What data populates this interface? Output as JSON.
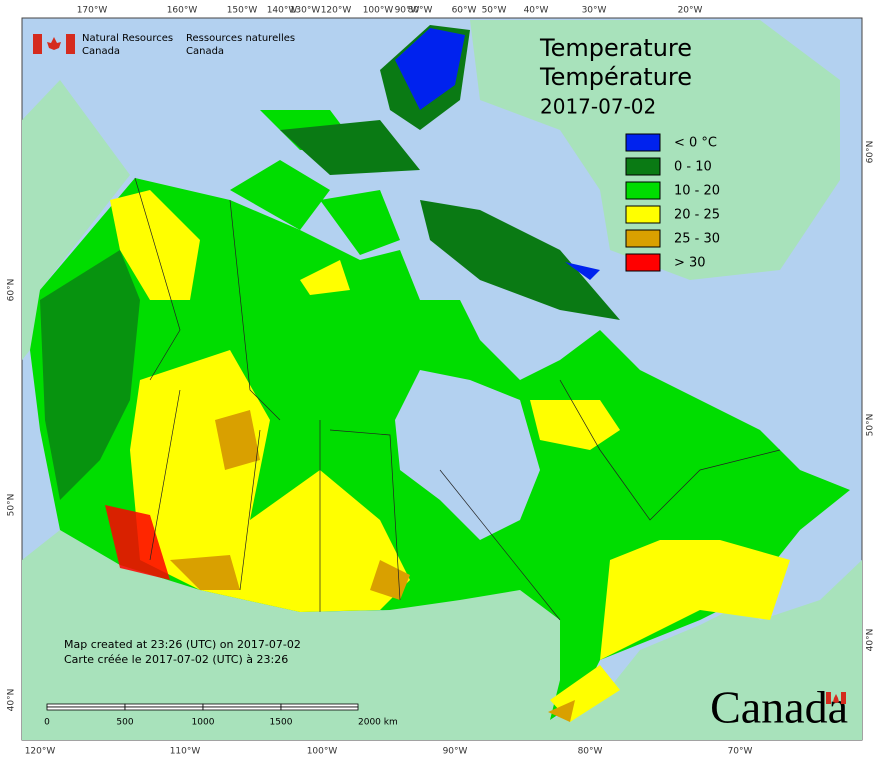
{
  "agency": {
    "en": [
      "Natural Resources",
      "Canada"
    ],
    "fr": [
      "Ressources naturelles",
      "Canada"
    ]
  },
  "title": [
    "Temperature",
    "Température",
    "2017-07-02"
  ],
  "legend": [
    {
      "label": "< 0 °C",
      "color": "#0022ee"
    },
    {
      "label": "0 - 10",
      "color": "#0a7a14"
    },
    {
      "label": "10 - 20",
      "color": "#00dd00"
    },
    {
      "label": "20 - 25",
      "color": "#ffff00"
    },
    {
      "label": "25 - 30",
      "color": "#d9a000"
    },
    {
      "label": "> 30",
      "color": "#ff0000"
    }
  ],
  "notes": [
    "Map created at 23:26 (UTC) on 2017-07-02",
    "Carte créée le 2017-07-02 (UTC) à 23:26"
  ],
  "scale_bar": [
    "0",
    "500",
    "1000",
    "1500",
    "2000 km"
  ],
  "graticule": {
    "top": [
      "170°W",
      "160°W",
      "150°W",
      "140°W",
      "130°W",
      "120°W",
      "100°W",
      "90°W",
      "80°W",
      "60°W",
      "50°W",
      "40°W",
      "30°W",
      "20°W"
    ],
    "bottom": [
      "120°W",
      "110°W",
      "100°W",
      "90°W",
      "80°W",
      "70°W"
    ],
    "left": [
      "60°N",
      "50°N",
      "40°N"
    ],
    "right": [
      "60°N",
      "50°N",
      "40°N"
    ]
  },
  "wordmark": "Canada"
}
